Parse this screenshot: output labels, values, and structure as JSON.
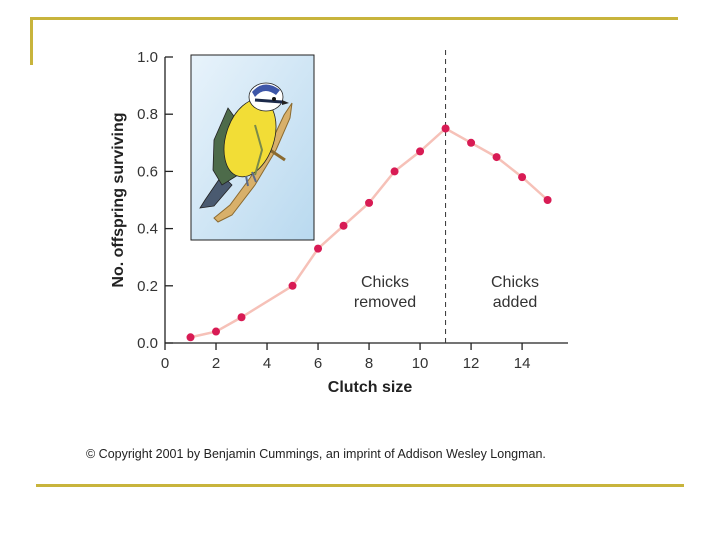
{
  "colors": {
    "frame": "#c8b43c",
    "line": "#f6c1b8",
    "marker": "#d81b54",
    "axis": "#222222",
    "picture_sky": "#d9ebf7"
  },
  "icons": {
    "bird": "blue-tit-illustration"
  },
  "chart_data": {
    "type": "line",
    "title": "",
    "xlabel": "Clutch size",
    "ylabel": "No. offspring surviving",
    "xlim": [
      0,
      15.8
    ],
    "ylim": [
      0,
      1.0
    ],
    "x_ticks": [
      0,
      2,
      4,
      6,
      8,
      10,
      12,
      14
    ],
    "y_ticks": [
      0.0,
      0.2,
      0.4,
      0.6,
      0.8,
      1.0
    ],
    "x_tick_labels": [
      "0",
      "2",
      "4",
      "6",
      "8",
      "10",
      "12",
      "14"
    ],
    "y_tick_labels": [
      "0.0",
      "0.2",
      "0.4",
      "0.6",
      "0.8",
      "1.0"
    ],
    "grid": false,
    "series": [
      {
        "x": [
          1,
          2,
          3,
          5,
          6,
          7,
          8,
          9,
          10,
          11,
          12,
          13,
          14,
          15
        ],
        "y": [
          0.02,
          0.04,
          0.09,
          0.2,
          0.33,
          0.41,
          0.49,
          0.6,
          0.67,
          0.75,
          0.7,
          0.65,
          0.58,
          0.5
        ]
      }
    ],
    "reference_line": {
      "x": 11,
      "style": "dashed"
    },
    "annotations": {
      "left": [
        "Chicks",
        "removed"
      ],
      "right": [
        "Chicks",
        "added"
      ]
    }
  },
  "footer": {
    "copyright": "© Copyright 2001 by Benjamin Cummings, an imprint of Addison Wesley Longman."
  }
}
